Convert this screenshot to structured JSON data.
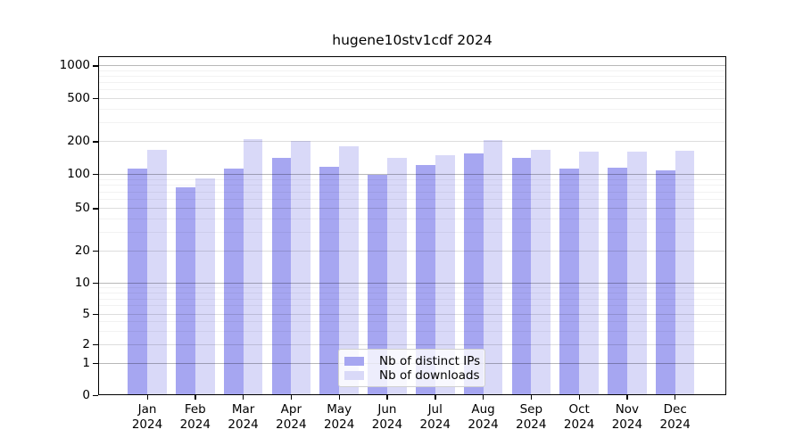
{
  "chart": {
    "year": "2024",
    "months": [
      "Jan",
      "Feb",
      "Mar",
      "Apr",
      "May",
      "Jun",
      "Jul",
      "Aug",
      "Sep",
      "Oct",
      "Nov",
      "Dec"
    ]
  },
  "chart_data": {
    "type": "bar",
    "title": "hugene10stv1cdf 2024",
    "categories": [
      "Jan 2024",
      "Feb 2024",
      "Mar 2024",
      "Apr 2024",
      "May 2024",
      "Jun 2024",
      "Jul 2024",
      "Aug 2024",
      "Sep 2024",
      "Oct 2024",
      "Nov 2024",
      "Dec 2024"
    ],
    "series": [
      {
        "name": "Nb of distinct IPs",
        "color": "#a6a6f1",
        "values": [
          112,
          76,
          112,
          140,
          117,
          98,
          121,
          155,
          140,
          113,
          114,
          108
        ]
      },
      {
        "name": "Nb of downloads",
        "color": "#d9d9f8",
        "values": [
          165,
          92,
          208,
          200,
          181,
          141,
          149,
          206,
          168,
          160,
          160,
          164
        ]
      }
    ],
    "xlabel": "",
    "ylabel": "",
    "yticks": [
      0,
      1,
      2,
      5,
      10,
      20,
      50,
      100,
      200,
      500,
      1000
    ],
    "yscale": "log-like (linear segment from 0 to 1)",
    "ylim": [
      0,
      1200
    ],
    "grid": true,
    "legend_position": "lower center"
  }
}
